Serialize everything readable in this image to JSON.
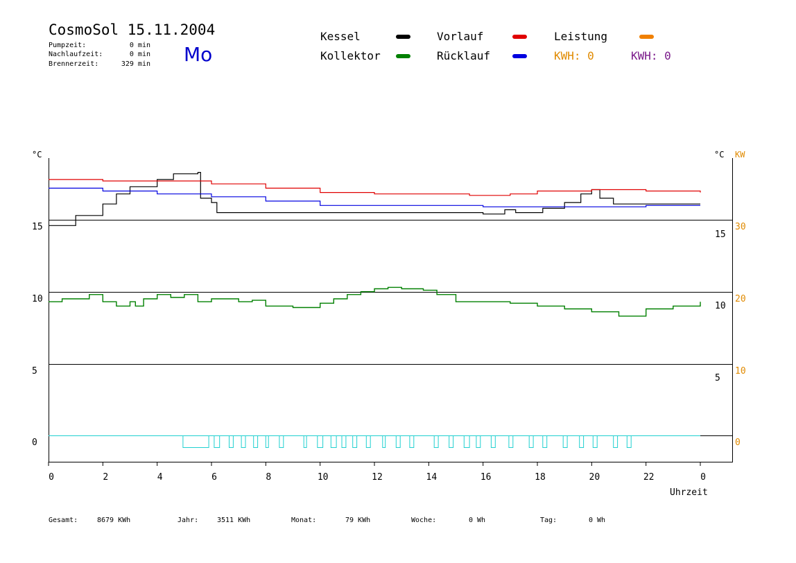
{
  "header": {
    "title": "CosmoSol 15.11.2004",
    "weekday": "Mo",
    "stats": [
      {
        "label": "Pumpzeit:",
        "value": "0 min"
      },
      {
        "label": "Nachlaufzeit:",
        "value": "0 min"
      },
      {
        "label": "Brennerzeit:",
        "value": "329 min"
      }
    ]
  },
  "legend": {
    "items": [
      {
        "label": "Kessel",
        "color": "#000000"
      },
      {
        "label": "Vorlauf",
        "color": "#e00000"
      },
      {
        "label": "Leistung",
        "color": "#f08000"
      },
      {
        "label": "Kollektor",
        "color": "#008000"
      },
      {
        "label": "Rücklauf",
        "color": "#0000e0"
      }
    ],
    "kwh": [
      {
        "label": "KWH: 0",
        "color": "#e08a00"
      },
      {
        "label": "KWH: 0",
        "color": "#7a1a8a"
      }
    ]
  },
  "footer": {
    "items": [
      {
        "label": "Gesamt:",
        "value": "8679 KWh"
      },
      {
        "label": "Jahr:",
        "value": "3511 KWh"
      },
      {
        "label": "Monat:",
        "value": "79 KWh"
      },
      {
        "label": "Woche:",
        "value": "0 Wh"
      },
      {
        "label": "Tag:",
        "value": "0 Wh"
      }
    ]
  },
  "chart_data": {
    "type": "line",
    "xlabel": "Uhrzeit",
    "x_ticks": [
      "0",
      "2",
      "4",
      "6",
      "8",
      "10",
      "12",
      "14",
      "16",
      "18",
      "20",
      "22",
      "0"
    ],
    "left_unit": "°C",
    "left_ticks": [
      "15",
      "10",
      "5",
      "0"
    ],
    "right_unit": "°C",
    "right_kw_unit": "KW",
    "right_ticks": [
      "15",
      "10",
      "5"
    ],
    "right_kw_ticks": [
      "30",
      "20",
      "10",
      "0"
    ],
    "grid": "horizontal",
    "series": [
      {
        "name": "Kessel",
        "color": "#000000",
        "points": [
          [
            0,
            14.6
          ],
          [
            1,
            15.3
          ],
          [
            2,
            16.1
          ],
          [
            2.5,
            16.8
          ],
          [
            3,
            17.3
          ],
          [
            4,
            17.8
          ],
          [
            4.6,
            18.2
          ],
          [
            5.5,
            18.3
          ],
          [
            5.6,
            16.5
          ],
          [
            6,
            16.2
          ],
          [
            6.2,
            15.5
          ],
          [
            9,
            15.5
          ],
          [
            12,
            15.5
          ],
          [
            15.8,
            15.5
          ],
          [
            16,
            15.4
          ],
          [
            16.8,
            15.7
          ],
          [
            17.2,
            15.5
          ],
          [
            17.6,
            15.5
          ],
          [
            18.2,
            15.8
          ],
          [
            19,
            16.2
          ],
          [
            19.6,
            16.8
          ],
          [
            20,
            17.1
          ],
          [
            20.3,
            16.5
          ],
          [
            20.8,
            16.1
          ],
          [
            24,
            16.1
          ]
        ]
      },
      {
        "name": "Vorlauf",
        "color": "#e00000",
        "points": [
          [
            0,
            17.8
          ],
          [
            2,
            17.7
          ],
          [
            4,
            17.7
          ],
          [
            6,
            17.5
          ],
          [
            8,
            17.2
          ],
          [
            10,
            16.9
          ],
          [
            12,
            16.8
          ],
          [
            14,
            16.8
          ],
          [
            15.5,
            16.7
          ],
          [
            17,
            16.8
          ],
          [
            18,
            17.0
          ],
          [
            20,
            17.1
          ],
          [
            22,
            17.0
          ],
          [
            24,
            16.9
          ]
        ]
      },
      {
        "name": "Rücklauf",
        "color": "#0000e0",
        "points": [
          [
            0,
            17.2
          ],
          [
            2,
            17.0
          ],
          [
            4,
            16.8
          ],
          [
            6,
            16.6
          ],
          [
            8,
            16.3
          ],
          [
            10,
            16.0
          ],
          [
            12,
            16.0
          ],
          [
            14,
            16.0
          ],
          [
            16,
            15.9
          ],
          [
            18,
            15.9
          ],
          [
            20,
            15.9
          ],
          [
            22,
            16.0
          ],
          [
            24,
            16.0
          ]
        ]
      },
      {
        "name": "Kollektor",
        "color": "#008000",
        "points": [
          [
            0,
            9.3
          ],
          [
            0.5,
            9.5
          ],
          [
            1.5,
            9.8
          ],
          [
            2,
            9.3
          ],
          [
            2.5,
            9.0
          ],
          [
            3,
            9.3
          ],
          [
            3.2,
            9.0
          ],
          [
            3.5,
            9.5
          ],
          [
            4,
            9.8
          ],
          [
            4.5,
            9.6
          ],
          [
            5,
            9.8
          ],
          [
            5.5,
            9.3
          ],
          [
            6,
            9.5
          ],
          [
            7,
            9.3
          ],
          [
            7.5,
            9.4
          ],
          [
            8,
            9.0
          ],
          [
            9,
            8.9
          ],
          [
            10,
            9.2
          ],
          [
            10.5,
            9.5
          ],
          [
            11,
            9.8
          ],
          [
            11.5,
            10.0
          ],
          [
            12,
            10.2
          ],
          [
            12.5,
            10.3
          ],
          [
            13,
            10.2
          ],
          [
            13.8,
            10.1
          ],
          [
            14.3,
            9.8
          ],
          [
            15,
            9.3
          ],
          [
            16,
            9.3
          ],
          [
            17,
            9.2
          ],
          [
            18,
            9.0
          ],
          [
            19,
            8.8
          ],
          [
            20,
            8.6
          ],
          [
            21,
            8.3
          ],
          [
            22,
            8.8
          ],
          [
            23,
            9.0
          ],
          [
            24,
            9.3
          ]
        ]
      }
    ],
    "pump_pulses_hours": [
      [
        4.95,
        5.9
      ],
      [
        6.1,
        6.3
      ],
      [
        6.65,
        6.8
      ],
      [
        7.1,
        7.25
      ],
      [
        7.55,
        7.7
      ],
      [
        8.0,
        8.1
      ],
      [
        8.5,
        8.65
      ],
      [
        9.4,
        9.5
      ],
      [
        9.9,
        10.1
      ],
      [
        10.4,
        10.6
      ],
      [
        10.8,
        10.95
      ],
      [
        11.2,
        11.35
      ],
      [
        11.7,
        11.85
      ],
      [
        12.3,
        12.4
      ],
      [
        12.8,
        12.95
      ],
      [
        13.3,
        13.45
      ],
      [
        14.2,
        14.35
      ],
      [
        14.75,
        14.9
      ],
      [
        15.3,
        15.5
      ],
      [
        15.75,
        15.9
      ],
      [
        16.3,
        16.45
      ],
      [
        16.95,
        17.1
      ],
      [
        17.7,
        17.85
      ],
      [
        18.2,
        18.35
      ],
      [
        18.95,
        19.1
      ],
      [
        19.55,
        19.7
      ],
      [
        20.05,
        20.2
      ],
      [
        20.8,
        20.95
      ],
      [
        21.3,
        21.45
      ]
    ],
    "y_range": [
      -1,
      19
    ],
    "x_range": [
      0,
      24
    ]
  }
}
